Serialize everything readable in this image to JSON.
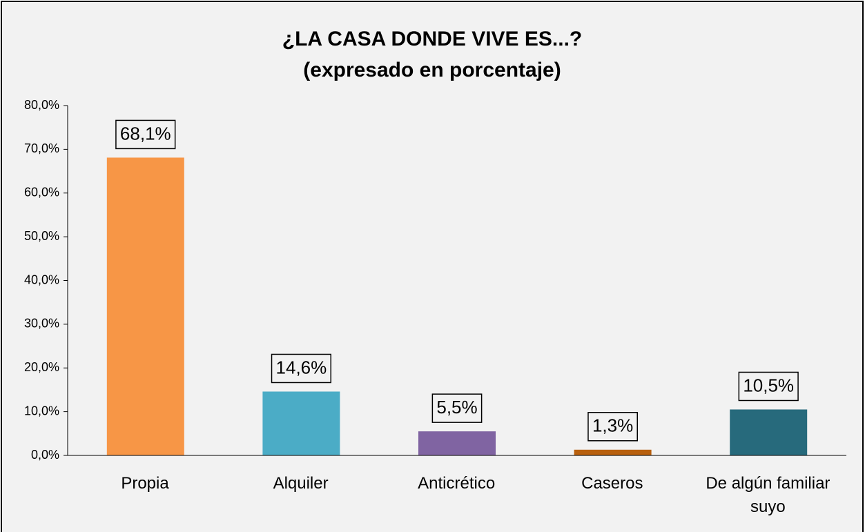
{
  "chart_data": {
    "type": "bar",
    "title": "¿LA CASA  DONDE VIVE ES...?",
    "subtitle": "(expresado en porcentaje)",
    "categories": [
      "Propia",
      "Alquiler",
      "Anticrético",
      "Caseros",
      "De algún familiar suyo"
    ],
    "values": [
      68.1,
      14.6,
      5.5,
      1.3,
      10.5
    ],
    "value_labels": [
      "68,1%",
      "14,6%",
      "5,5%",
      "1,3%",
      "10,5%"
    ],
    "colors": [
      "#f79646",
      "#4bacc6",
      "#8064a2",
      "#b8600e",
      "#276a7c"
    ],
    "ylim": [
      0,
      80
    ],
    "yticks": [
      {
        "value": 0,
        "label": "0,0%"
      },
      {
        "value": 10,
        "label": "10,0%"
      },
      {
        "value": 20,
        "label": "20,0%"
      },
      {
        "value": 30,
        "label": "30,0%"
      },
      {
        "value": 40,
        "label": "40,0%"
      },
      {
        "value": 50,
        "label": "50,0%"
      },
      {
        "value": 60,
        "label": "60,0%"
      },
      {
        "value": 70,
        "label": "70,0%"
      },
      {
        "value": 80,
        "label": "80,0%"
      }
    ]
  }
}
